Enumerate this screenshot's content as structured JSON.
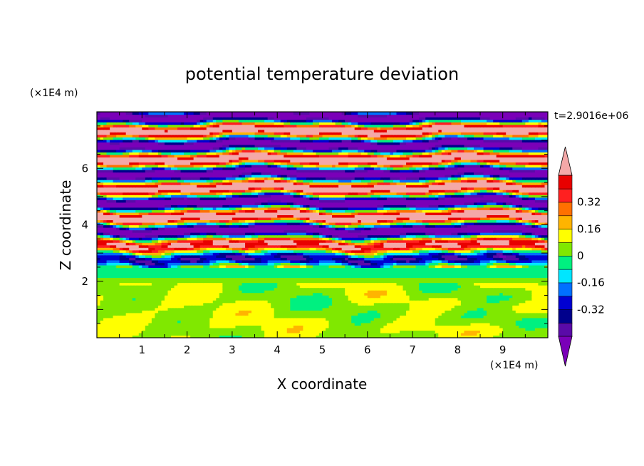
{
  "chart_data": {
    "type": "heatmap",
    "title": "potential temperature deviation",
    "xlabel": "X coordinate",
    "ylabel": "Z coordinate",
    "x_unit": "(×1E4 m)",
    "y_unit": "(×1E4 m)",
    "time_label": "t=2.9016e+06",
    "xlim": [
      0,
      10
    ],
    "ylim": [
      0,
      8
    ],
    "x_ticks": [
      "1",
      "2",
      "3",
      "4",
      "5",
      "6",
      "7",
      "8",
      "9"
    ],
    "y_ticks": [
      "2",
      "4",
      "6"
    ],
    "colorbar": {
      "levels": [
        -0.48,
        -0.4,
        -0.32,
        -0.24,
        -0.16,
        -0.08,
        0,
        0.08,
        0.16,
        0.24,
        0.32,
        0.4,
        0.48
      ],
      "colors": [
        "#7a00b8",
        "#5a0aa8",
        "#00008c",
        "#0000d2",
        "#0070ff",
        "#00e6ff",
        "#00f080",
        "#80e800",
        "#ffff00",
        "#ffb400",
        "#ff7000",
        "#ff2020",
        "#e80000",
        "#f4a8a8"
      ],
      "labels": [
        "0.32",
        "0.16",
        "0",
        "-0.16",
        "-0.32"
      ],
      "label_values": [
        0.32,
        0.16,
        0,
        -0.16,
        -0.32
      ],
      "extend": "both"
    }
  }
}
